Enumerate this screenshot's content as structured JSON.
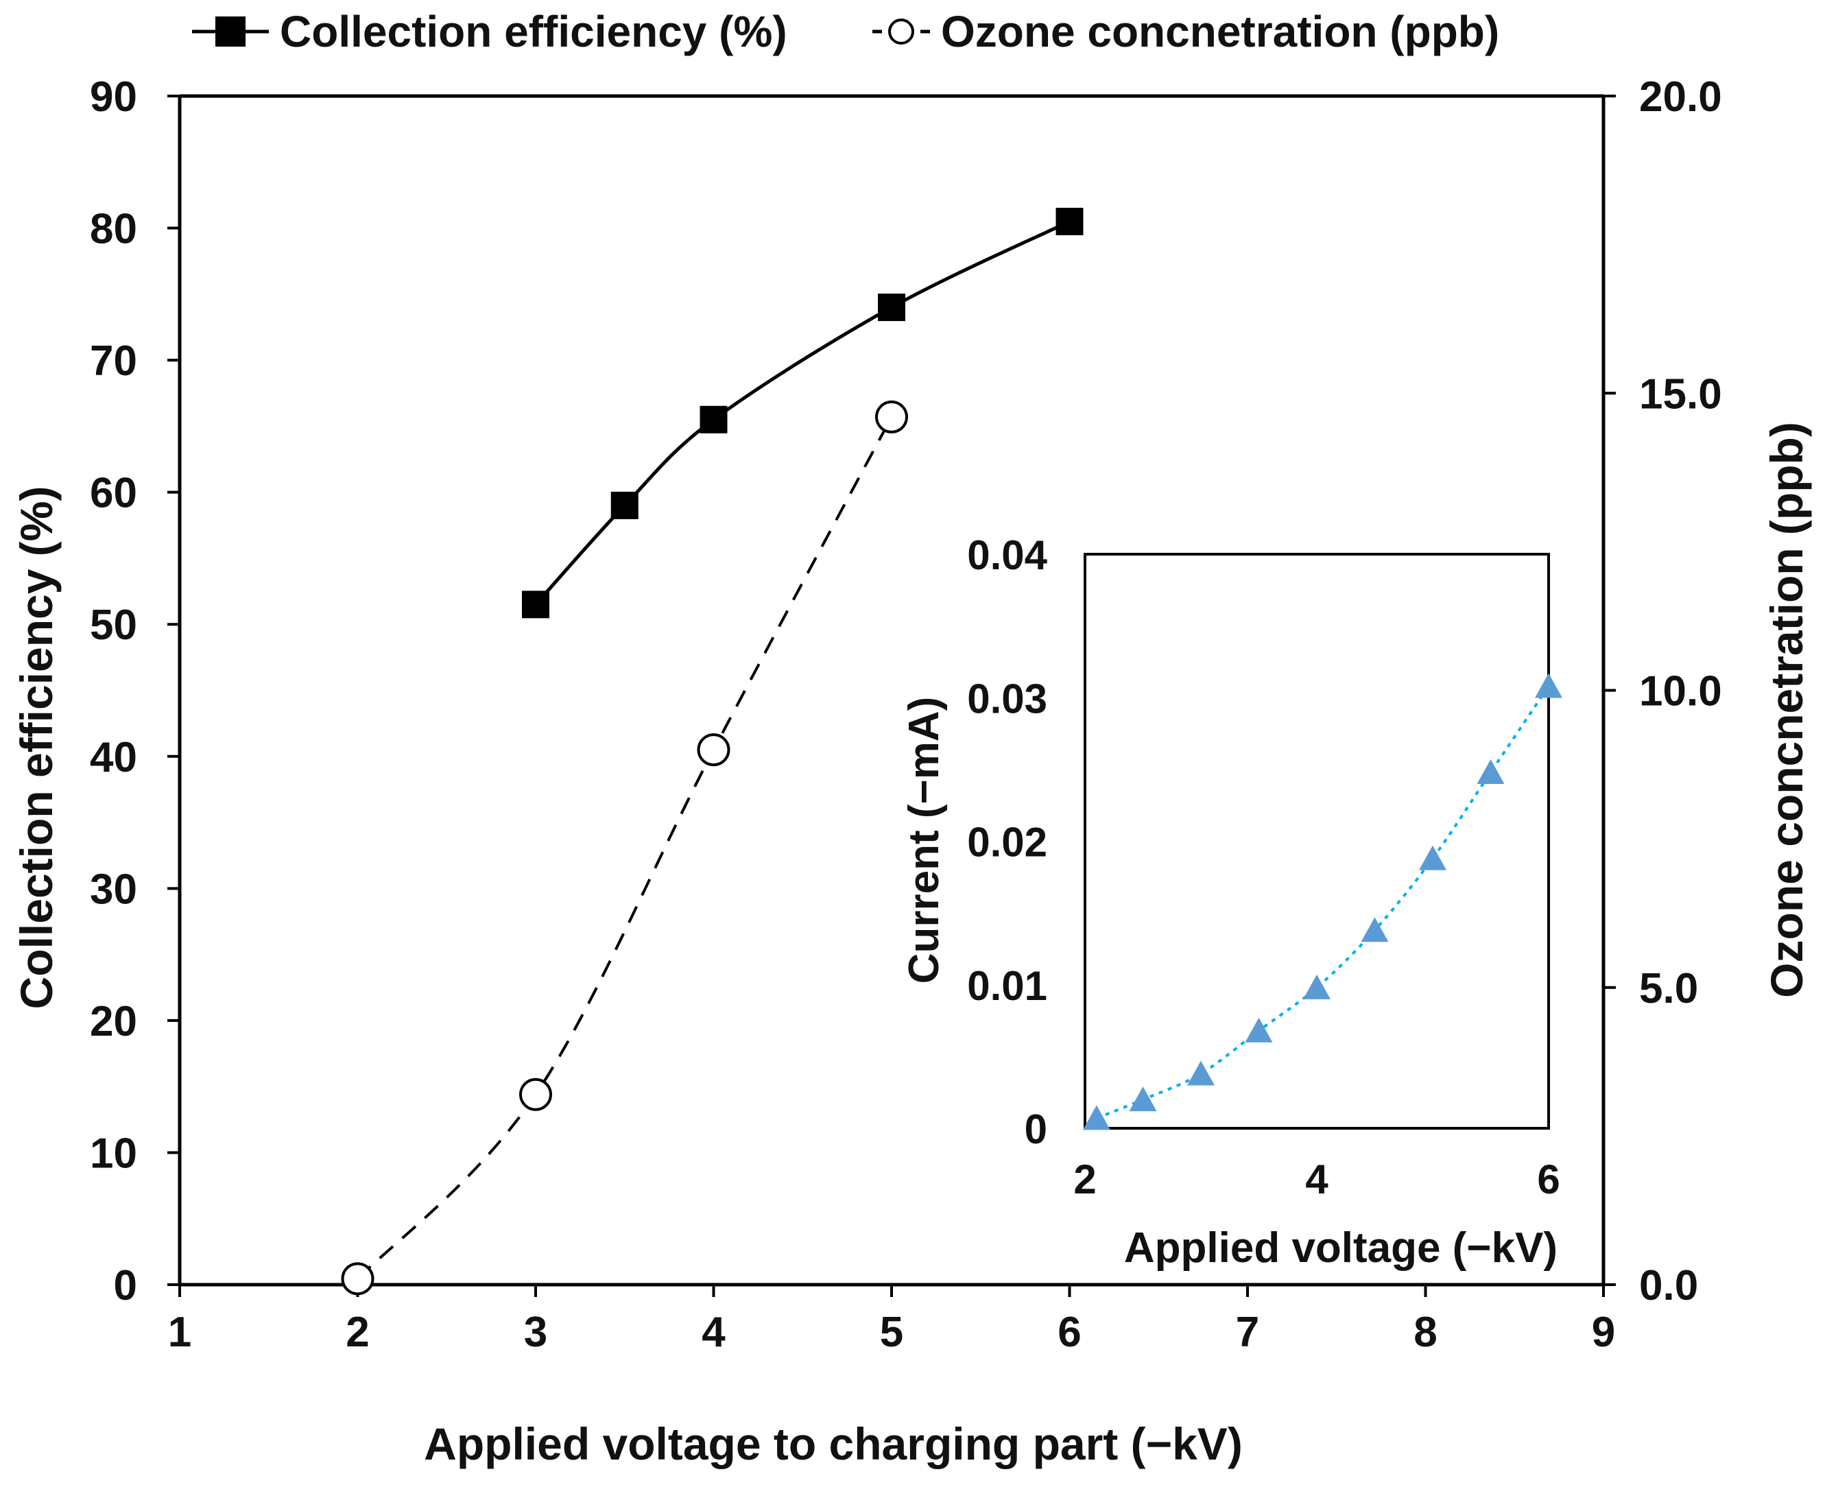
{
  "chart_data": [
    {
      "type": "line",
      "x": [
        2,
        3,
        3.5,
        4,
        5,
        6
      ],
      "series": [
        {
          "name": "Collection efficiency (%)",
          "axis": "left",
          "marker": "filled-square",
          "line": "solid",
          "color": "#000000",
          "points": [
            [
              3,
              51.5
            ],
            [
              3.5,
              59.0
            ],
            [
              4,
              65.5
            ],
            [
              5,
              74.0
            ],
            [
              6,
              80.5
            ]
          ]
        },
        {
          "name": "Ozone concnetration (ppb)",
          "axis": "right",
          "marker": "open-circle",
          "line": "dashed",
          "color": "#000000",
          "points": [
            [
              2,
              0.1
            ],
            [
              3,
              3.2
            ],
            [
              4,
              9.0
            ],
            [
              5,
              14.6
            ]
          ]
        }
      ],
      "xlabel": "Applied voltage to charging part (−kV)",
      "ylabel_left": "Collection efficiency (%)",
      "ylabel_right": "Ozone concnetration (ppb)",
      "xlim": [
        1,
        9
      ],
      "ylim_left": [
        0,
        90
      ],
      "ylim_right": [
        0,
        20
      ],
      "xticks": [
        "1",
        "2",
        "3",
        "4",
        "5",
        "6",
        "7",
        "8",
        "9"
      ],
      "yticks_left": [
        "0",
        "10",
        "20",
        "30",
        "40",
        "50",
        "60",
        "70",
        "80",
        "90"
      ],
      "yticks_right": [
        "0.0",
        "5.0",
        "10.0",
        "15.0",
        "20.0"
      ],
      "grid": false,
      "legend_position": "top"
    },
    {
      "type": "line",
      "inset": true,
      "series": [
        {
          "name": "",
          "marker": "filled-triangle",
          "line": "dotted",
          "color": "#5b9bd5",
          "line_color": "#00b0f0",
          "points": [
            [
              2.1,
              0.0007
            ],
            [
              2.5,
              0.002
            ],
            [
              3.0,
              0.0038
            ],
            [
              3.5,
              0.0068
            ],
            [
              4.0,
              0.0098
            ],
            [
              4.5,
              0.0138
            ],
            [
              5.0,
              0.0188
            ],
            [
              5.5,
              0.0248
            ],
            [
              6.0,
              0.0308
            ]
          ]
        }
      ],
      "xlabel": "Applied voltage (−kV)",
      "ylabel": "Current (−mA)",
      "xlim": [
        2,
        6
      ],
      "ylim": [
        0,
        0.04
      ],
      "xticks": [
        "2",
        "4",
        "6"
      ],
      "yticks": [
        "0",
        "0.01",
        "0.02",
        "0.03",
        "0.04"
      ],
      "grid": false
    }
  ]
}
